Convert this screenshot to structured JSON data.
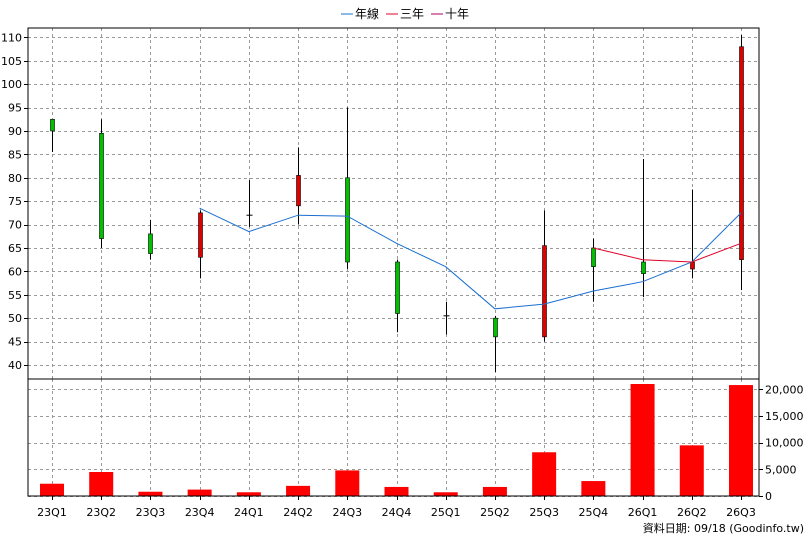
{
  "chart_data": {
    "type": "candlestick",
    "legend": [
      {
        "name": "年線",
        "color": "#1a6fd1"
      },
      {
        "name": "三年",
        "color": "#e0002a"
      },
      {
        "name": "十年",
        "color": "#b0006a"
      }
    ],
    "legend_position": "top-center",
    "grid": true,
    "categories": [
      "23Q1",
      "23Q2",
      "23Q3",
      "23Q4",
      "24Q1",
      "24Q2",
      "24Q3",
      "24Q4",
      "25Q1",
      "25Q2",
      "25Q3",
      "25Q4",
      "26Q1",
      "26Q2",
      "26Q3"
    ],
    "price": {
      "ylim": [
        37,
        112
      ],
      "ticks": [
        40,
        45,
        50,
        55,
        60,
        65,
        70,
        75,
        80,
        85,
        90,
        95,
        100,
        105,
        110
      ],
      "candles": [
        {
          "o": 90.0,
          "h": 92.5,
          "l": 85.5,
          "c": 92.5
        },
        {
          "o": 67.0,
          "h": 92.5,
          "l": 65.0,
          "c": 89.5
        },
        {
          "o": 63.8,
          "h": 71.0,
          "l": 62.5,
          "c": 68.0
        },
        {
          "o": 72.5,
          "h": 73.0,
          "l": 58.5,
          "c": 63.0
        },
        {
          "o": 72.0,
          "h": 79.5,
          "l": 69.5,
          "c": 72.0
        },
        {
          "o": 80.5,
          "h": 86.5,
          "l": 70.0,
          "c": 74.0
        },
        {
          "o": 62.0,
          "h": 95.0,
          "l": 60.5,
          "c": 80.0
        },
        {
          "o": 51.0,
          "h": 62.5,
          "l": 47.0,
          "c": 62.0
        },
        {
          "o": 50.5,
          "h": 53.5,
          "l": 46.5,
          "c": 50.5
        },
        {
          "o": 46.0,
          "h": 50.5,
          "l": 38.5,
          "c": 50.0
        },
        {
          "o": 65.5,
          "h": 73.0,
          "l": 45.0,
          "c": 46.0
        },
        {
          "o": 61.0,
          "h": 67.0,
          "l": 53.5,
          "c": 65.0
        },
        {
          "o": 59.5,
          "h": 84.0,
          "l": 54.5,
          "c": 62.0
        },
        {
          "o": 62.0,
          "h": 77.5,
          "l": 58.5,
          "c": 60.5
        },
        {
          "o": 108.0,
          "h": 110.5,
          "l": 56.0,
          "c": 62.5
        }
      ],
      "up_color": "#00c000",
      "down_color": "#e00000",
      "lines": [
        {
          "name": "年線",
          "color": "#1a6fd1",
          "values": [
            null,
            null,
            null,
            73.5,
            68.5,
            72.0,
            71.8,
            66.0,
            61.0,
            52.0,
            53.0,
            55.8,
            57.8,
            62.0,
            72.5
          ]
        },
        {
          "name": "三年",
          "color": "#e0002a",
          "values": [
            null,
            null,
            null,
            null,
            null,
            null,
            null,
            null,
            null,
            null,
            null,
            65.0,
            62.5,
            62.0,
            66.0
          ]
        }
      ]
    },
    "volume": {
      "ylim": [
        0,
        21000
      ],
      "ticks": [
        0,
        5000,
        10000,
        15000,
        20000
      ],
      "tick_labels": [
        "0",
        "5,000",
        "10,000",
        "15,000",
        "20,000"
      ],
      "bar_color": "#ff0000",
      "values": [
        2300,
        4500,
        800,
        1200,
        700,
        1900,
        4800,
        1700,
        700,
        1700,
        8200,
        2800,
        21000,
        9500,
        20800
      ]
    }
  },
  "footer": {
    "text": "資料日期: 09/18 (Goodinfo.tw)"
  }
}
